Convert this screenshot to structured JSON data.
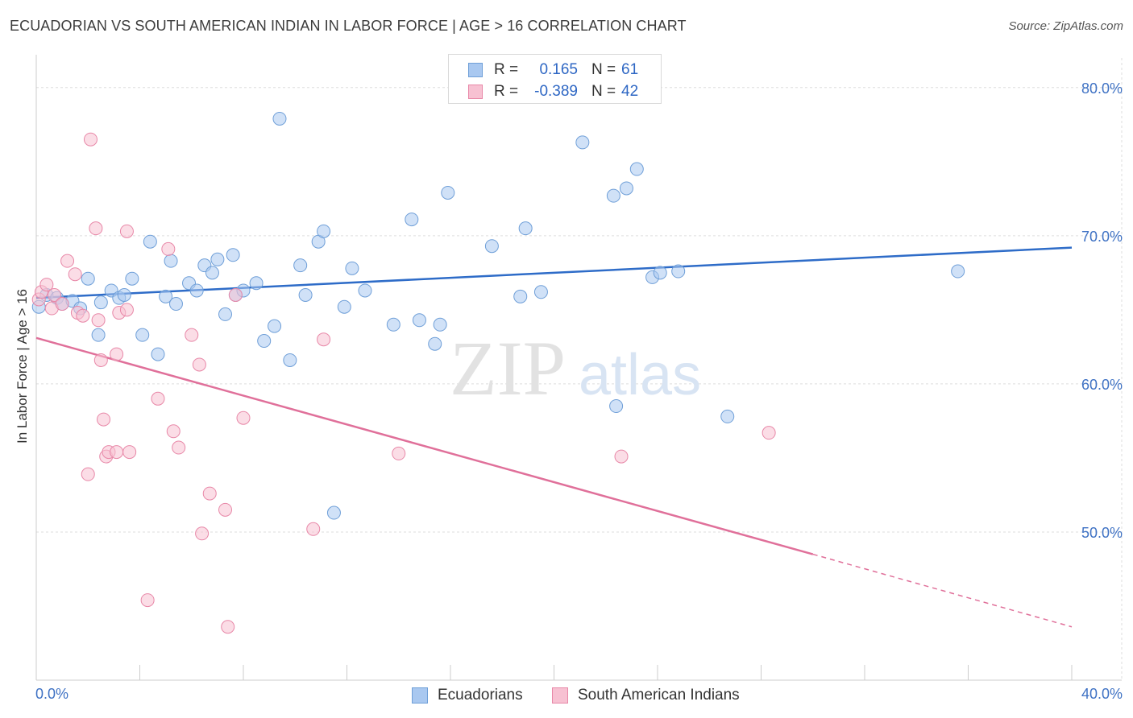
{
  "title": "ECUADORIAN VS SOUTH AMERICAN INDIAN IN LABOR FORCE | AGE > 16 CORRELATION CHART",
  "source": "Source: ZipAtlas.com",
  "watermark": {
    "zip": "ZIP",
    "atlas": "atlas"
  },
  "legend": {
    "r_label": "R =",
    "n_label": "N =",
    "entries": [
      {
        "r": "0.165",
        "n": "61",
        "color": "#a9c8f0",
        "border": "#6f9fd8"
      },
      {
        "r": "-0.389",
        "n": "42",
        "color": "#f7c1d2",
        "border": "#e888a8"
      }
    ]
  },
  "bottom_legend": [
    "Ecuadorians",
    "South American Indians"
  ],
  "chart_data": {
    "type": "scatter",
    "title": "ECUADORIAN VS SOUTH AMERICAN INDIAN IN LABOR FORCE | AGE > 16 CORRELATION CHART",
    "xlabel": "",
    "ylabel": "In Labor Force | Age > 16",
    "xlim": [
      0,
      40
    ],
    "ylim": [
      40,
      82
    ],
    "x_tick_labels": [
      "0.0%",
      "40.0%"
    ],
    "y_ticks": [
      50,
      60,
      70,
      80
    ],
    "y_tick_labels": [
      "50.0%",
      "60.0%",
      "70.0%",
      "80.0%"
    ],
    "grid": true,
    "legend_position": "top-center",
    "series": [
      {
        "name": "Ecuadorians",
        "color": "#6f9fd8",
        "fill": "#a9c8f0",
        "points": [
          [
            0.1,
            65.2
          ],
          [
            0.4,
            66.0
          ],
          [
            0.8,
            65.8
          ],
          [
            1.0,
            65.4
          ],
          [
            1.4,
            65.6
          ],
          [
            1.7,
            65.1
          ],
          [
            2.0,
            67.1
          ],
          [
            2.4,
            63.3
          ],
          [
            2.5,
            65.5
          ],
          [
            2.9,
            66.3
          ],
          [
            3.2,
            65.8
          ],
          [
            3.4,
            66.0
          ],
          [
            3.7,
            67.1
          ],
          [
            4.1,
            63.3
          ],
          [
            4.4,
            69.6
          ],
          [
            4.7,
            62.0
          ],
          [
            5.0,
            65.9
          ],
          [
            5.2,
            68.3
          ],
          [
            5.4,
            65.4
          ],
          [
            5.9,
            66.8
          ],
          [
            6.2,
            66.3
          ],
          [
            6.5,
            68.0
          ],
          [
            6.8,
            67.5
          ],
          [
            7.0,
            68.4
          ],
          [
            7.3,
            64.7
          ],
          [
            7.6,
            68.7
          ],
          [
            7.7,
            66.0
          ],
          [
            8.0,
            66.3
          ],
          [
            8.5,
            66.8
          ],
          [
            8.8,
            62.9
          ],
          [
            9.2,
            63.9
          ],
          [
            9.4,
            77.9
          ],
          [
            9.8,
            61.6
          ],
          [
            10.2,
            68.0
          ],
          [
            10.4,
            66.0
          ],
          [
            10.9,
            69.6
          ],
          [
            11.1,
            70.3
          ],
          [
            11.5,
            51.3
          ],
          [
            11.9,
            65.2
          ],
          [
            12.2,
            67.8
          ],
          [
            12.7,
            66.3
          ],
          [
            13.8,
            64.0
          ],
          [
            14.5,
            71.1
          ],
          [
            14.8,
            64.3
          ],
          [
            15.4,
            62.7
          ],
          [
            15.6,
            64.0
          ],
          [
            15.9,
            72.9
          ],
          [
            17.6,
            69.3
          ],
          [
            18.7,
            65.9
          ],
          [
            18.9,
            70.5
          ],
          [
            19.5,
            66.2
          ],
          [
            21.1,
            76.3
          ],
          [
            22.3,
            72.7
          ],
          [
            22.4,
            58.5
          ],
          [
            22.8,
            73.2
          ],
          [
            23.2,
            74.5
          ],
          [
            23.8,
            67.2
          ],
          [
            24.1,
            67.5
          ],
          [
            24.8,
            67.6
          ],
          [
            26.7,
            57.8
          ],
          [
            35.6,
            67.6
          ]
        ],
        "trend": [
          [
            0,
            65.8
          ],
          [
            40,
            69.2
          ]
        ]
      },
      {
        "name": "South American Indians",
        "color": "#e888a8",
        "fill": "#f7c1d2",
        "points": [
          [
            0.1,
            65.7
          ],
          [
            0.2,
            66.2
          ],
          [
            0.4,
            66.7
          ],
          [
            0.6,
            65.1
          ],
          [
            0.7,
            66.0
          ],
          [
            1.0,
            65.4
          ],
          [
            1.2,
            68.3
          ],
          [
            1.5,
            67.4
          ],
          [
            1.6,
            64.8
          ],
          [
            1.8,
            64.6
          ],
          [
            2.0,
            53.9
          ],
          [
            2.1,
            76.5
          ],
          [
            2.3,
            70.5
          ],
          [
            2.4,
            64.3
          ],
          [
            2.5,
            61.6
          ],
          [
            2.6,
            57.6
          ],
          [
            2.7,
            55.1
          ],
          [
            2.8,
            55.4
          ],
          [
            3.1,
            62.0
          ],
          [
            3.1,
            55.4
          ],
          [
            3.2,
            64.8
          ],
          [
            3.5,
            65.0
          ],
          [
            3.5,
            70.3
          ],
          [
            3.6,
            55.4
          ],
          [
            4.3,
            45.4
          ],
          [
            4.7,
            59.0
          ],
          [
            5.1,
            69.1
          ],
          [
            5.3,
            56.8
          ],
          [
            5.5,
            55.7
          ],
          [
            6.0,
            63.3
          ],
          [
            6.3,
            61.3
          ],
          [
            6.4,
            49.9
          ],
          [
            6.7,
            52.6
          ],
          [
            7.3,
            51.5
          ],
          [
            7.4,
            43.6
          ],
          [
            7.7,
            66.0
          ],
          [
            8.0,
            57.7
          ],
          [
            10.7,
            50.2
          ],
          [
            11.1,
            63.0
          ],
          [
            14.0,
            55.3
          ],
          [
            22.6,
            55.1
          ],
          [
            28.3,
            56.7
          ]
        ],
        "trend_solid": [
          [
            0,
            63.1
          ],
          [
            30,
            48.5
          ]
        ],
        "trend_dashed": [
          [
            30,
            48.5
          ],
          [
            40,
            43.6
          ]
        ]
      }
    ]
  }
}
